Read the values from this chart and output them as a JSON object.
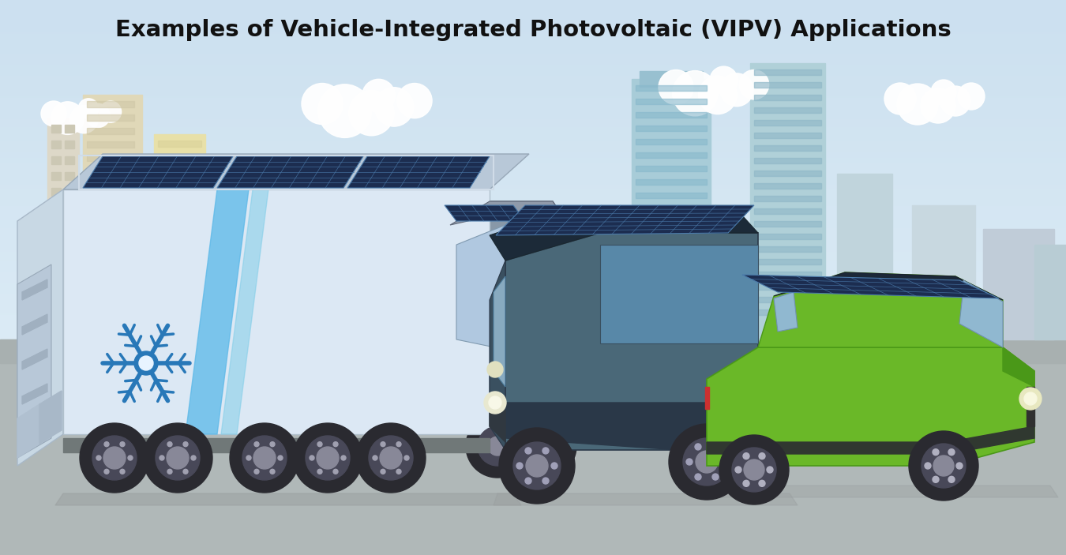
{
  "title": "Examples of Vehicle-Integrated Photovoltaic (VIPV) Applications",
  "title_fontsize": 21,
  "title_fontweight": "bold",
  "title_color": "#111111",
  "bg_sky": "#cce0f0",
  "bg_ground": "#b8b8b8",
  "bg_horizon": "#d8eaf8",
  "cloud_color": "#ffffff",
  "building_cream": "#e8e0c0",
  "building_teal": "#a8c8d8",
  "building_yellow": "#e0d898",
  "building_glass": "#b0ccd8",
  "building_lt": "#c8d8e0",
  "solar_dark": "#1c2d50",
  "solar_mid": "#253560",
  "solar_line": "#4a7aaa",
  "trailer_body": "#dce8f4",
  "trailer_side": "#c8d8e8",
  "trailer_dark": "#9aaabb",
  "trailer_roof_top": "#b8c8d8",
  "stripe_blue1": "#5ab8e8",
  "stripe_blue2": "#7acce8",
  "snowflake_color": "#2878b8",
  "cab_color": "#8898a8",
  "cab_dark": "#606878",
  "cab_window": "#b0c8e0",
  "van_body": "#4a6878",
  "van_side": "#3a5870",
  "van_top": "#2a3848",
  "van_window": "#88aac0",
  "van_glass_side": "#5888a8",
  "car_green": "#6ab828",
  "car_dark_green": "#4a9818",
  "car_hood": "#3a8010",
  "car_window": "#90b8d0",
  "wheel_outer": "#2a2a30",
  "wheel_mid": "#484858",
  "wheel_rim": "#888898",
  "ground_color": "#b0b8b8",
  "ground_shadow": "#9ca4a4"
}
